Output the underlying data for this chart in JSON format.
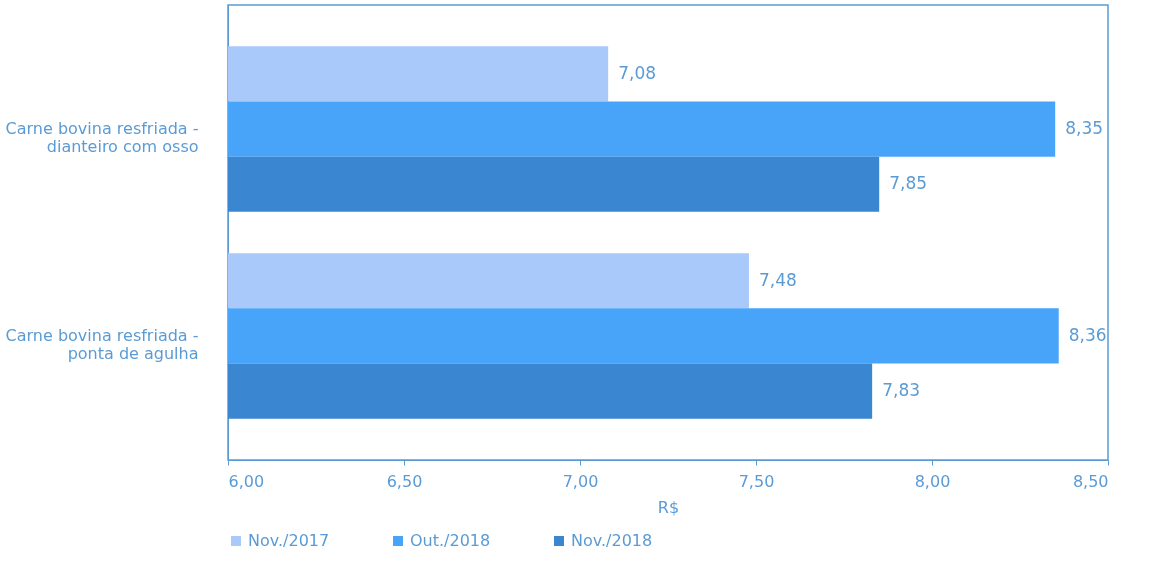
{
  "chart_data": {
    "type": "bar",
    "orientation": "horizontal",
    "xlabel": "R$",
    "categories": [
      "Carne bovina resfriada - dianteiro com osso",
      "Carne bovina resfriada - ponta de agulha"
    ],
    "series": [
      {
        "name": "Nov./2017",
        "color": "#a9c9fb",
        "values": [
          7.08,
          7.48
        ],
        "value_labels": [
          "7,08",
          "7,48"
        ]
      },
      {
        "name": "Out./2018",
        "color": "#48a4f9",
        "values": [
          8.35,
          8.36
        ],
        "value_labels": [
          "8,35",
          "8,36"
        ]
      },
      {
        "name": "Nov./2018",
        "color": "#3a86d0",
        "values": [
          7.85,
          7.83
        ],
        "value_labels": [
          "7,85",
          "7,83"
        ]
      }
    ],
    "xlim": [
      6,
      8.5
    ],
    "xticks": [
      {
        "value": 6,
        "label": "6,00"
      },
      {
        "value": 6.5,
        "label": "6,50"
      },
      {
        "value": 7,
        "label": "7,00"
      },
      {
        "value": 7.5,
        "label": "7,50"
      },
      {
        "value": 8,
        "label": "8,00"
      },
      {
        "value": 8.5,
        "label": "8,50"
      }
    ],
    "grid": false,
    "legend": "bottom"
  }
}
